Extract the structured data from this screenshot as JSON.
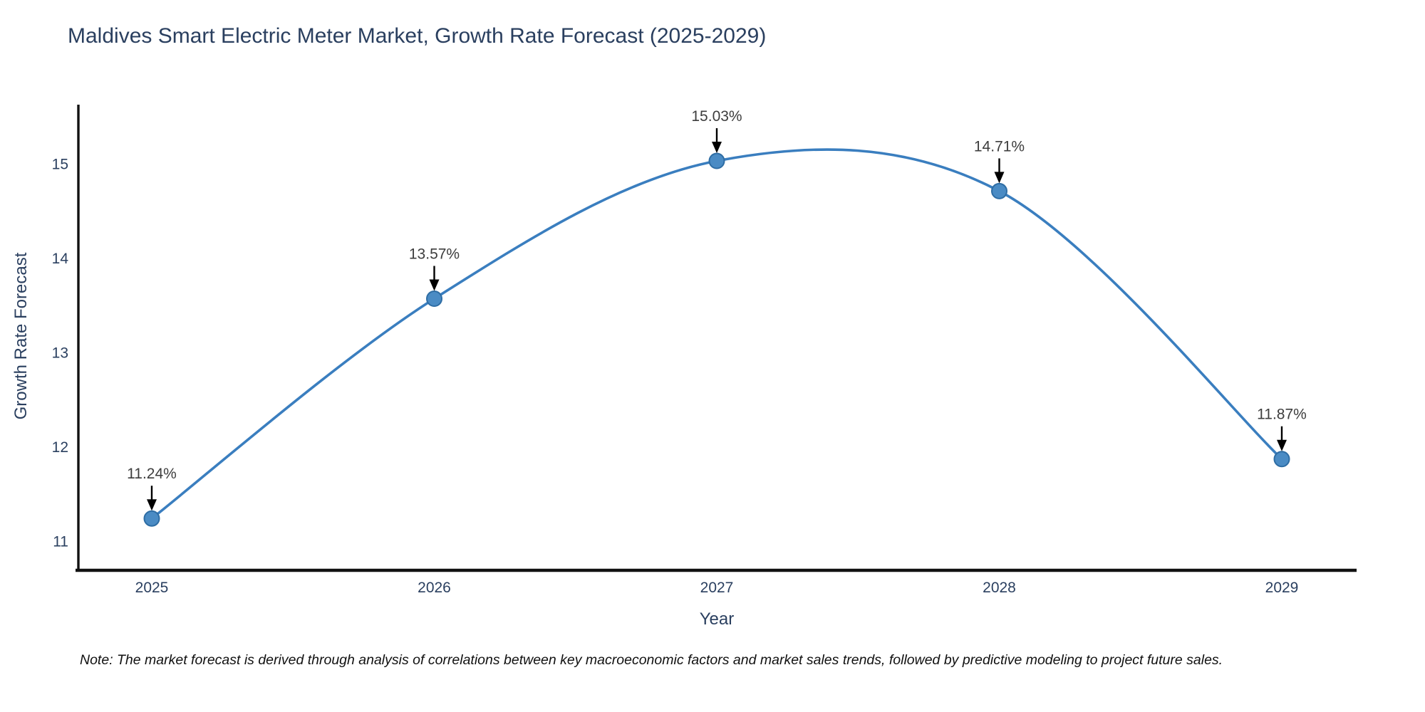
{
  "chart": {
    "title": "Maldives Smart Electric Meter Market, Growth Rate Forecast (2025-2029)",
    "xlabel": "Year",
    "ylabel": "Growth Rate Forecast"
  },
  "note": "Note: The market forecast is derived through analysis of correlations between key macroeconomic factors and market sales trends, followed by predictive modeling to project future sales.",
  "chart_data": {
    "type": "line",
    "line_shape": "spline",
    "title": "Maldives Smart Electric Meter Market, Growth Rate Forecast (2025-2029)",
    "xlabel": "Year",
    "ylabel": "Growth Rate Forecast",
    "categories": [
      "2025",
      "2026",
      "2027",
      "2028",
      "2029"
    ],
    "values": [
      11.24,
      13.57,
      15.03,
      14.71,
      11.87
    ],
    "point_labels": [
      "11.24%",
      "13.57%",
      "15.03%",
      "14.71%",
      "11.87%"
    ],
    "yticks": [
      "11",
      "12",
      "13",
      "14",
      "15"
    ],
    "ylim": [
      10.69,
      15.62
    ],
    "grid": false,
    "legend_position": "none",
    "annotations": "arrow-down-to-point",
    "colors": {
      "line": "#3a7ebf",
      "marker_fill": "#4a8bc4",
      "marker_stroke": "#2e6da4",
      "axis_line": "#111111",
      "title_text": "#2a3f5f",
      "tick_text": "#2a3f5f",
      "annotation_text": "#3d3d3d",
      "arrow": "#000000",
      "note_text": "#111111",
      "background": "#ffffff"
    }
  }
}
